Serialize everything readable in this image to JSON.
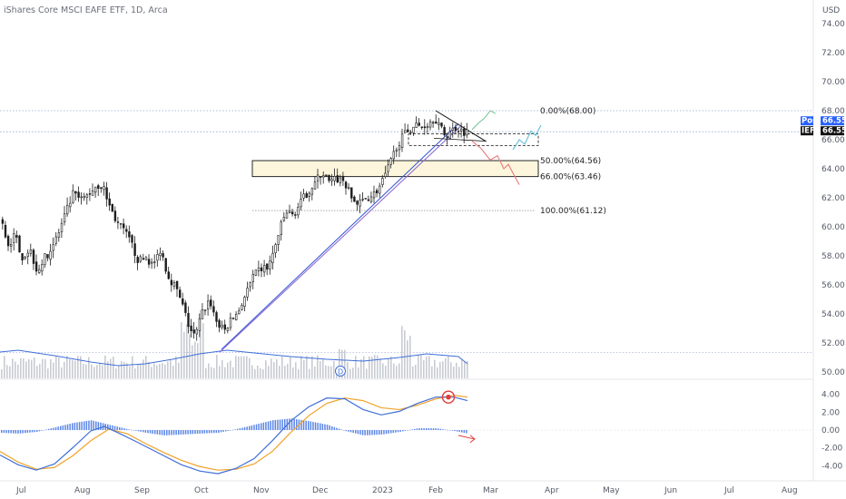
{
  "title": "iShares Core MSCI EAFE ETF, 1D, Arca",
  "currency": "USD",
  "colors": {
    "background": "#ffffff",
    "candle": "#1c1c1c",
    "volume": "#c8cbd2",
    "volume_ma": "#3f6fd8",
    "macd_line": "#3f6fd8",
    "signal_line": "#f0a22a",
    "histogram": "#5b86e6",
    "grid_dotted": "#9aa8d8",
    "post_tag": "#2962ff",
    "symbol_tag": "#111111",
    "zone_fill": "#fdf6dc",
    "trendline_blue": "#2f55d4",
    "trendline_purple": "#8a5fd0",
    "proj_green": "#7fc79a",
    "proj_red": "#ea7a7a",
    "proj_cyan": "#5fc0d8",
    "alert_red": "#e23c3c"
  },
  "chart_data": [
    {
      "type": "candlestick",
      "ylim": [
        49.5,
        75.5
      ],
      "yticks": [
        50,
        52,
        54,
        56,
        58,
        60,
        62,
        64,
        66,
        68,
        70,
        72,
        74
      ],
      "ytick_labels": [
        "50.00",
        "52.00",
        "54.00",
        "56.00",
        "58.00",
        "60.00",
        "62.00",
        "64.00",
        "66.00",
        "68.00",
        "70.00",
        "72.00",
        "74.00"
      ],
      "x_months": [
        "Jul",
        "Aug",
        "Sep",
        "Oct",
        "Nov",
        "Dec",
        "2023",
        "Feb",
        "Mar",
        "Apr",
        "May",
        "Jun",
        "Jul",
        "Aug"
      ],
      "price_path": [
        [
          0,
          60.5
        ],
        [
          8,
          58.8
        ],
        [
          16,
          59.4
        ],
        [
          24,
          57.9
        ],
        [
          32,
          58.5
        ],
        [
          40,
          57.0
        ],
        [
          48,
          57.8
        ],
        [
          56,
          58.6
        ],
        [
          64,
          59.6
        ],
        [
          72,
          61.0
        ],
        [
          80,
          62.3
        ],
        [
          88,
          61.8
        ],
        [
          96,
          62.2
        ],
        [
          104,
          62.8
        ],
        [
          112,
          62.9
        ],
        [
          120,
          61.4
        ],
        [
          128,
          60.3
        ],
        [
          136,
          59.7
        ],
        [
          144,
          58.8
        ],
        [
          152,
          57.6
        ],
        [
          160,
          57.9
        ],
        [
          168,
          57.3
        ],
        [
          176,
          58.5
        ],
        [
          184,
          56.7
        ],
        [
          192,
          55.9
        ],
        [
          200,
          54.6
        ],
        [
          208,
          53.0
        ],
        [
          214,
          52.4
        ],
        [
          222,
          54.1
        ],
        [
          230,
          55.0
        ],
        [
          238,
          53.4
        ],
        [
          246,
          52.8
        ],
        [
          254,
          53.6
        ],
        [
          262,
          54.2
        ],
        [
          270,
          55.4
        ],
        [
          278,
          56.5
        ],
        [
          286,
          57.1
        ],
        [
          294,
          57.2
        ],
        [
          300,
          58.1
        ],
        [
          306,
          59.5
        ],
        [
          314,
          61.0
        ],
        [
          322,
          60.8
        ],
        [
          330,
          61.6
        ],
        [
          338,
          62.4
        ],
        [
          346,
          63.0
        ],
        [
          354,
          63.8
        ],
        [
          362,
          63.0
        ],
        [
          370,
          63.3
        ],
        [
          378,
          63.2
        ],
        [
          386,
          62.0
        ],
        [
          394,
          61.5
        ],
        [
          402,
          62.0
        ],
        [
          410,
          62.2
        ],
        [
          418,
          62.8
        ],
        [
          424,
          63.6
        ],
        [
          430,
          64.5
        ],
        [
          436,
          65.6
        ],
        [
          442,
          66.1
        ],
        [
          448,
          66.6
        ],
        [
          456,
          67.0
        ],
        [
          464,
          66.9
        ],
        [
          472,
          67.2
        ],
        [
          478,
          67.6
        ],
        [
          484,
          66.8
        ],
        [
          490,
          66.3
        ],
        [
          496,
          66.6
        ],
        [
          502,
          66.9
        ],
        [
          508,
          66.6
        ],
        [
          514,
          66.55
        ]
      ],
      "last_price": 66.55,
      "price_tags": [
        {
          "label": "Post",
          "value": "66.55"
        },
        {
          "label": "IEFA",
          "value": "66.55"
        }
      ],
      "fib_levels": [
        {
          "label": "0.00%(68.00)",
          "value": 68.0
        },
        {
          "label": "50.00%(64.56)",
          "value": 64.56
        },
        {
          "label": "66.00%(63.46)",
          "value": 63.46
        },
        {
          "label": "100.00%(61.12)",
          "value": 61.12
        }
      ],
      "zone": {
        "top": 64.56,
        "bottom": 63.46
      },
      "range_box": {
        "top": 66.4,
        "bottom": 65.6
      },
      "trendline": {
        "x0": 244,
        "y0": 51.55,
        "x1": 505,
        "y1": 67.1
      },
      "triangle_top": {
        "x0": 480,
        "y0": 68.0,
        "x1": 535,
        "y1": 65.9
      },
      "projections": {
        "green": [
          [
            520,
            66.7
          ],
          [
            528,
            67.2
          ],
          [
            534,
            67.5
          ],
          [
            540,
            68.0
          ],
          [
            546,
            67.8
          ]
        ],
        "red": [
          [
            520,
            65.9
          ],
          [
            530,
            65.4
          ],
          [
            540,
            64.6
          ],
          [
            548,
            64.9
          ],
          [
            555,
            64.0
          ],
          [
            560,
            64.3
          ],
          [
            566,
            63.6
          ],
          [
            572,
            62.9
          ]
        ],
        "cyan": [
          [
            565,
            65.3
          ],
          [
            572,
            66.0
          ],
          [
            578,
            65.7
          ],
          [
            585,
            66.6
          ],
          [
            590,
            66.3
          ],
          [
            596,
            67.0
          ]
        ]
      },
      "dividend_marker": {
        "label": "D",
        "x": 375
      }
    },
    {
      "type": "macd",
      "ylim": [
        -5.5,
        5.5
      ],
      "yticks": [
        4,
        2,
        0,
        -2,
        -4
      ],
      "ytick_labels": [
        "4.00",
        "2.00",
        "0.00",
        "-2.00",
        "-4.00"
      ],
      "macd_path": [
        [
          0,
          -2.8
        ],
        [
          20,
          -3.9
        ],
        [
          40,
          -4.5
        ],
        [
          60,
          -3.8
        ],
        [
          80,
          -2.0
        ],
        [
          100,
          -0.1
        ],
        [
          115,
          0.4
        ],
        [
          130,
          -0.3
        ],
        [
          150,
          -1.3
        ],
        [
          175,
          -2.6
        ],
        [
          200,
          -3.9
        ],
        [
          220,
          -4.6
        ],
        [
          240,
          -4.9
        ],
        [
          260,
          -4.3
        ],
        [
          280,
          -3.2
        ],
        [
          300,
          -1.2
        ],
        [
          320,
          1.0
        ],
        [
          340,
          2.6
        ],
        [
          360,
          3.6
        ],
        [
          380,
          3.5
        ],
        [
          400,
          2.3
        ],
        [
          420,
          1.7
        ],
        [
          440,
          2.1
        ],
        [
          460,
          3.0
        ],
        [
          480,
          3.7
        ],
        [
          500,
          3.7
        ],
        [
          515,
          3.3
        ]
      ],
      "signal_path": [
        [
          0,
          -2.4
        ],
        [
          20,
          -3.6
        ],
        [
          40,
          -4.4
        ],
        [
          60,
          -4.2
        ],
        [
          80,
          -2.9
        ],
        [
          100,
          -1.2
        ],
        [
          120,
          0.1
        ],
        [
          140,
          -0.4
        ],
        [
          160,
          -1.5
        ],
        [
          180,
          -2.5
        ],
        [
          200,
          -3.4
        ],
        [
          220,
          -4.1
        ],
        [
          240,
          -4.5
        ],
        [
          260,
          -4.4
        ],
        [
          280,
          -3.8
        ],
        [
          300,
          -2.4
        ],
        [
          320,
          -0.3
        ],
        [
          340,
          1.6
        ],
        [
          360,
          3.0
        ],
        [
          380,
          3.6
        ],
        [
          400,
          3.3
        ],
        [
          420,
          2.5
        ],
        [
          440,
          2.3
        ],
        [
          460,
          2.8
        ],
        [
          480,
          3.5
        ],
        [
          500,
          3.9
        ],
        [
          515,
          3.7
        ]
      ],
      "histogram_path": [
        [
          0,
          -0.3
        ],
        [
          20,
          -0.4
        ],
        [
          40,
          -0.2
        ],
        [
          60,
          0.3
        ],
        [
          80,
          0.8
        ],
        [
          100,
          1.1
        ],
        [
          120,
          0.6
        ],
        [
          140,
          0.1
        ],
        [
          160,
          -0.3
        ],
        [
          180,
          -0.6
        ],
        [
          200,
          -0.5
        ],
        [
          220,
          -0.4
        ],
        [
          240,
          -0.3
        ],
        [
          260,
          0.1
        ],
        [
          280,
          0.6
        ],
        [
          300,
          1.1
        ],
        [
          320,
          1.3
        ],
        [
          340,
          1.0
        ],
        [
          360,
          0.6
        ],
        [
          380,
          -0.1
        ],
        [
          400,
          -0.6
        ],
        [
          420,
          -0.5
        ],
        [
          440,
          -0.2
        ],
        [
          460,
          0.2
        ],
        [
          480,
          0.2
        ],
        [
          500,
          -0.1
        ],
        [
          515,
          -0.4
        ]
      ],
      "cross_marker_x": 494
    }
  ]
}
